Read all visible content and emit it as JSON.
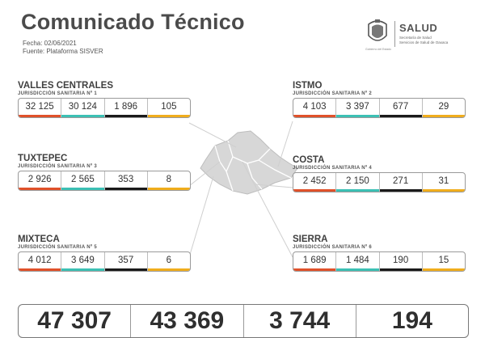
{
  "header": {
    "title": "Comunicado Técnico",
    "date_line": "Fecha: 02/06/2021",
    "source_line": "Fuente: Plataforma SISVER"
  },
  "logo": {
    "brand": "SALUD",
    "sub1": "Secretaría de Salud",
    "sub2": "Servicios de Salud de Oaxaca",
    "gov": "Gobierno del Estado",
    "icon": "state-emblem-icon"
  },
  "colors": {
    "bar1": "#e0512a",
    "bar2": "#3cc0b4",
    "bar3": "#1a1a1a",
    "bar4": "#f0ad1c",
    "map_fill": "#d7d7d7",
    "map_line": "#ffffff"
  },
  "regions": [
    {
      "name": "VALLES CENTRALES",
      "jurisdiction": "JURISDICCIÓN SANITARIA Nº 1",
      "values": [
        "32 125",
        "30 124",
        "1 896",
        "105"
      ]
    },
    {
      "name": "TUXTEPEC",
      "jurisdiction": "JURISDICCIÓN SANITARIA Nº 3",
      "values": [
        "2 926",
        "2 565",
        "353",
        "8"
      ]
    },
    {
      "name": "MIXTECA",
      "jurisdiction": "JURISDICCIÓN SANITARIA Nº 5",
      "values": [
        "4 012",
        "3 649",
        "357",
        "6"
      ]
    },
    {
      "name": "ISTMO",
      "jurisdiction": "JURISDICCIÓN SANITARIA Nº 2",
      "values": [
        "4 103",
        "3 397",
        "677",
        "29"
      ]
    },
    {
      "name": "COSTA",
      "jurisdiction": "JURISDICCIÓN SANITARIA Nº 4",
      "values": [
        "2 452",
        "2 150",
        "271",
        "31"
      ]
    },
    {
      "name": "SIERRA",
      "jurisdiction": "JURISDICCIÓN SANITARIA Nº 6",
      "values": [
        "1 689",
        "1 484",
        "190",
        "15"
      ]
    }
  ],
  "totals": [
    "47 307",
    "43 369",
    "3 744",
    "194"
  ]
}
